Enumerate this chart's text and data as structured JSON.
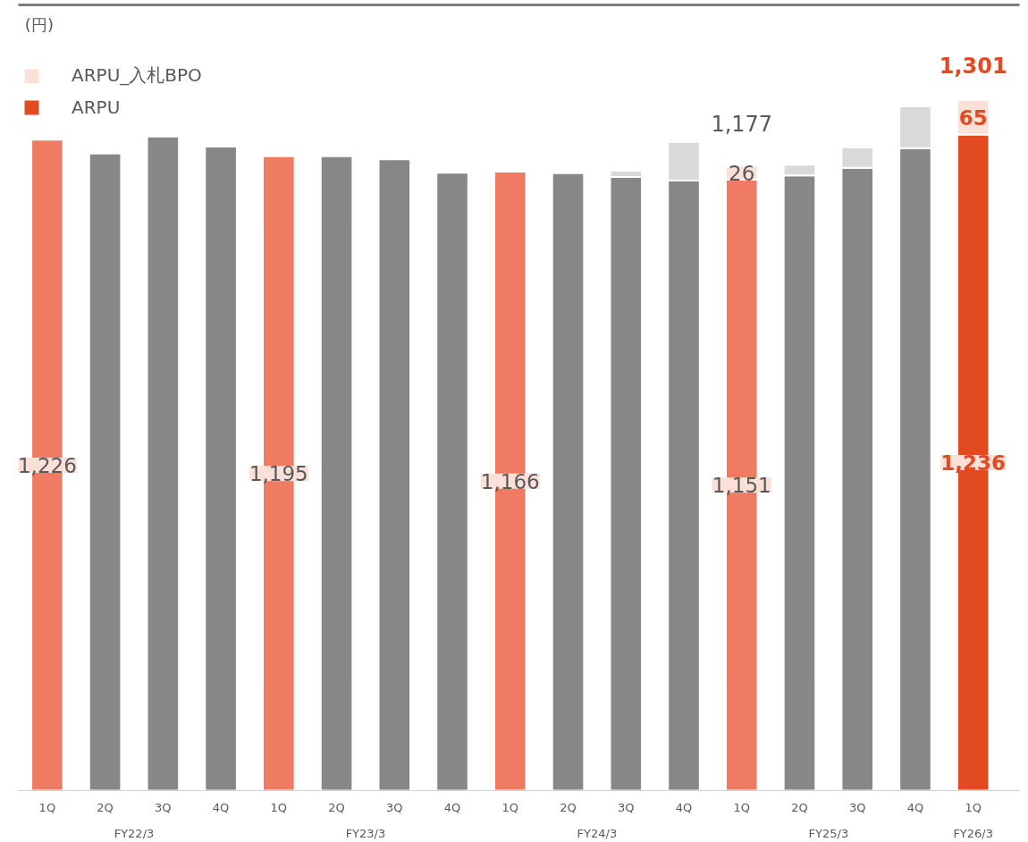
{
  "chart_data": {
    "type": "bar",
    "stacked": true,
    "ylabel": "(円)",
    "categories": [
      "1Q",
      "2Q",
      "3Q",
      "4Q",
      "1Q",
      "2Q",
      "3Q",
      "4Q",
      "1Q",
      "2Q",
      "3Q",
      "4Q",
      "1Q",
      "2Q",
      "3Q",
      "4Q",
      "1Q"
    ],
    "annotations": [
      "FY22/3",
      "FY23/3",
      "FY24/3",
      "FY25/3",
      "FY26/3"
    ],
    "ylim": [
      0,
      1480
    ],
    "tick_labels": "x",
    "grid": false,
    "legend": "top left",
    "series": [
      {
        "name": "ARPU",
        "color": "#e24a22",
        "values": [
          1226,
          1200,
          1232,
          1213,
          1195,
          1195,
          1189,
          1164,
          1166,
          1163,
          1156,
          1149,
          1151,
          1159,
          1173,
          1210,
          1236
        ],
        "colors": [
          "#ee7b62",
          "#878787",
          "#878787",
          "#878787",
          "#ee7b62",
          "#878787",
          "#878787",
          "#878787",
          "#ee7b62",
          "#878787",
          "#878787",
          "#878787",
          "#ee7b62",
          "#878787",
          "#878787",
          "#878787",
          "#e24a22"
        ],
        "value_labels": [
          "1,226",
          null,
          null,
          null,
          "1,195",
          null,
          null,
          null,
          "1,166",
          null,
          null,
          null,
          "1,151",
          null,
          null,
          null,
          "1,236"
        ]
      },
      {
        "name": "ARPU_入札BPO",
        "color": "#fbe0d8",
        "values": [
          null,
          null,
          null,
          null,
          null,
          null,
          null,
          null,
          null,
          null,
          12,
          73,
          26,
          20,
          39,
          79,
          65
        ],
        "colors": [
          "#fbe0d8",
          "#d9d9d9",
          "#d9d9d9",
          "#d9d9d9",
          "#fbe0d8",
          "#d9d9d9",
          "#d9d9d9",
          "#d9d9d9",
          "#fbe0d8",
          "#d9d9d9",
          "#d9d9d9",
          "#d9d9d9",
          "#fbe0d8",
          "#d9d9d9",
          "#d9d9d9",
          "#d9d9d9",
          "#fbe0d8"
        ],
        "value_labels": [
          null,
          null,
          null,
          null,
          null,
          null,
          null,
          null,
          null,
          null,
          null,
          null,
          "26",
          null,
          null,
          null,
          "65"
        ]
      }
    ],
    "totals": [
      null,
      null,
      null,
      null,
      null,
      null,
      null,
      null,
      null,
      null,
      null,
      null,
      "1,177",
      null,
      null,
      null,
      "1,301"
    ]
  }
}
